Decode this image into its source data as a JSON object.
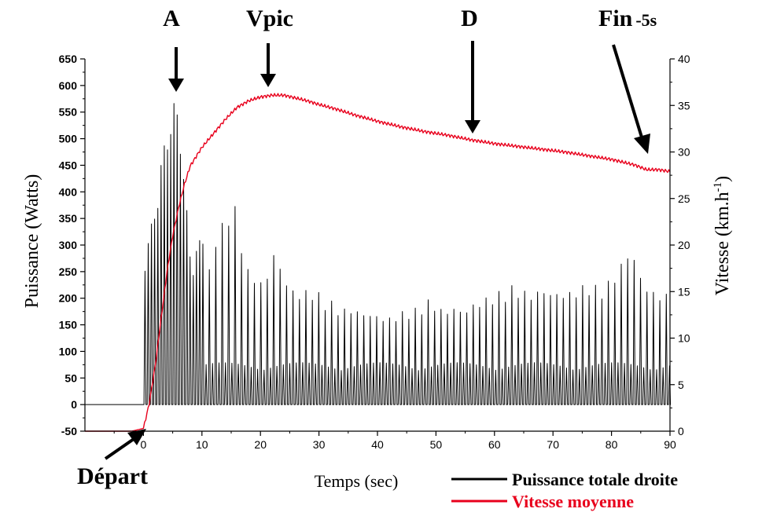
{
  "chart_data": {
    "type": "line",
    "xlabel": "Temps (sec)",
    "xlim": [
      -10,
      90
    ],
    "xticks": [
      0,
      10,
      20,
      30,
      40,
      50,
      60,
      70,
      80,
      90
    ],
    "y_left": {
      "label": "Puissance (Watts)",
      "lim": [
        -50,
        650
      ],
      "ticks": [
        -50,
        0,
        50,
        100,
        150,
        200,
        250,
        300,
        350,
        400,
        450,
        500,
        550,
        600,
        650
      ]
    },
    "y_right": {
      "label_main": "Vitesse (km.h",
      "label_sup": "-1",
      "label_close": ")",
      "lim": [
        0,
        40
      ],
      "ticks": [
        0,
        5,
        10,
        15,
        20,
        25,
        30,
        35,
        40
      ]
    },
    "series": [
      {
        "name": "Puissance totale droite",
        "axis": "left",
        "color": "#000000",
        "baseline": [
          [
            -10,
            0
          ],
          [
            0,
            0
          ]
        ],
        "peak_envelope": [
          [
            0,
            280
          ],
          [
            1,
            330
          ],
          [
            2,
            380
          ],
          [
            3,
            470
          ],
          [
            4,
            520
          ],
          [
            5,
            570
          ],
          [
            6,
            545
          ],
          [
            7,
            400
          ],
          [
            8,
            260
          ],
          [
            9,
            300
          ],
          [
            10,
            320
          ],
          [
            11,
            250
          ],
          [
            12,
            320
          ],
          [
            13,
            330
          ],
          [
            14,
            370
          ],
          [
            15,
            385
          ],
          [
            16,
            360
          ],
          [
            17,
            290
          ],
          [
            18,
            240
          ],
          [
            19,
            250
          ],
          [
            20,
            230
          ],
          [
            21,
            250
          ],
          [
            22,
            290
          ],
          [
            23,
            270
          ],
          [
            24,
            240
          ],
          [
            25,
            220
          ],
          [
            26,
            215
          ],
          [
            27,
            210
          ],
          [
            28,
            220
          ],
          [
            29,
            215
          ],
          [
            30,
            210
          ],
          [
            31,
            200
          ],
          [
            32,
            195
          ],
          [
            33,
            185
          ],
          [
            34,
            180
          ],
          [
            35,
            185
          ],
          [
            36,
            180
          ],
          [
            37,
            175
          ],
          [
            38,
            175
          ],
          [
            39,
            170
          ],
          [
            40,
            170
          ],
          [
            41,
            165
          ],
          [
            42,
            165
          ],
          [
            43,
            170
          ],
          [
            44,
            175
          ],
          [
            45,
            180
          ],
          [
            46,
            180
          ],
          [
            47,
            185
          ],
          [
            48,
            195
          ],
          [
            49,
            200
          ],
          [
            50,
            185
          ],
          [
            51,
            180
          ],
          [
            52,
            180
          ],
          [
            53,
            185
          ],
          [
            54,
            180
          ],
          [
            55,
            180
          ],
          [
            56,
            190
          ],
          [
            57,
            195
          ],
          [
            58,
            200
          ],
          [
            59,
            205
          ],
          [
            60,
            210
          ],
          [
            61,
            215
          ],
          [
            62,
            220
          ],
          [
            63,
            225
          ],
          [
            64,
            220
          ],
          [
            65,
            215
          ],
          [
            66,
            210
          ],
          [
            67,
            215
          ],
          [
            68,
            220
          ],
          [
            69,
            215
          ],
          [
            70,
            210
          ],
          [
            71,
            215
          ],
          [
            72,
            210
          ],
          [
            73,
            215
          ],
          [
            74,
            220
          ],
          [
            75,
            225
          ],
          [
            76,
            230
          ],
          [
            77,
            225
          ],
          [
            78,
            220
          ],
          [
            79,
            230
          ],
          [
            80,
            240
          ],
          [
            81,
            260
          ],
          [
            82,
            275
          ],
          [
            83,
            300
          ],
          [
            84,
            270
          ],
          [
            85,
            240
          ],
          [
            86,
            220
          ],
          [
            87,
            215
          ],
          [
            88,
            210
          ],
          [
            89,
            210
          ],
          [
            90,
            205
          ]
        ],
        "secondary_level": 75
      },
      {
        "name": "Vitesse moyenne",
        "axis": "right",
        "color": "#e8001c",
        "points": [
          [
            -10,
            0
          ],
          [
            -2,
            0
          ],
          [
            0,
            0.3
          ],
          [
            1,
            3
          ],
          [
            2,
            7
          ],
          [
            3,
            12
          ],
          [
            4,
            17
          ],
          [
            5,
            21
          ],
          [
            6,
            24
          ],
          [
            7,
            26.5
          ],
          [
            8,
            28.5
          ],
          [
            10,
            30.5
          ],
          [
            12,
            32
          ],
          [
            14,
            33.5
          ],
          [
            16,
            34.8
          ],
          [
            18,
            35.5
          ],
          [
            20,
            35.9
          ],
          [
            22,
            36.1
          ],
          [
            24,
            36.1
          ],
          [
            26,
            35.8
          ],
          [
            28,
            35.5
          ],
          [
            30,
            35.1
          ],
          [
            33,
            34.6
          ],
          [
            36,
            34
          ],
          [
            40,
            33.3
          ],
          [
            44,
            32.7
          ],
          [
            48,
            32.2
          ],
          [
            52,
            31.8
          ],
          [
            56,
            31.3
          ],
          [
            60,
            30.9
          ],
          [
            64,
            30.6
          ],
          [
            68,
            30.3
          ],
          [
            72,
            30
          ],
          [
            76,
            29.6
          ],
          [
            80,
            29.2
          ],
          [
            84,
            28.6
          ],
          [
            86,
            28.1
          ],
          [
            88,
            28.1
          ],
          [
            90,
            27.9
          ]
        ]
      }
    ],
    "annotations": [
      {
        "id": "A",
        "label": "A",
        "x": 5,
        "y_left": 590
      },
      {
        "id": "Vpic",
        "label": "Vpic",
        "x": 23,
        "y_right": 36.1
      },
      {
        "id": "D",
        "label": "D",
        "x": 57,
        "y_right": 31.1
      },
      {
        "id": "Fin",
        "label": "Fin",
        "suffix": "-5s",
        "x": 85,
        "y_right": 28.6
      },
      {
        "id": "Depart",
        "label": "Départ",
        "x": -1,
        "y_right": 0
      }
    ],
    "legend": {
      "placement": "bottom-right",
      "items": [
        {
          "label": "Puissance totale droite",
          "color": "#000000"
        },
        {
          "label": "Vitesse moyenne",
          "color": "#e8001c"
        }
      ]
    },
    "grid": false
  }
}
